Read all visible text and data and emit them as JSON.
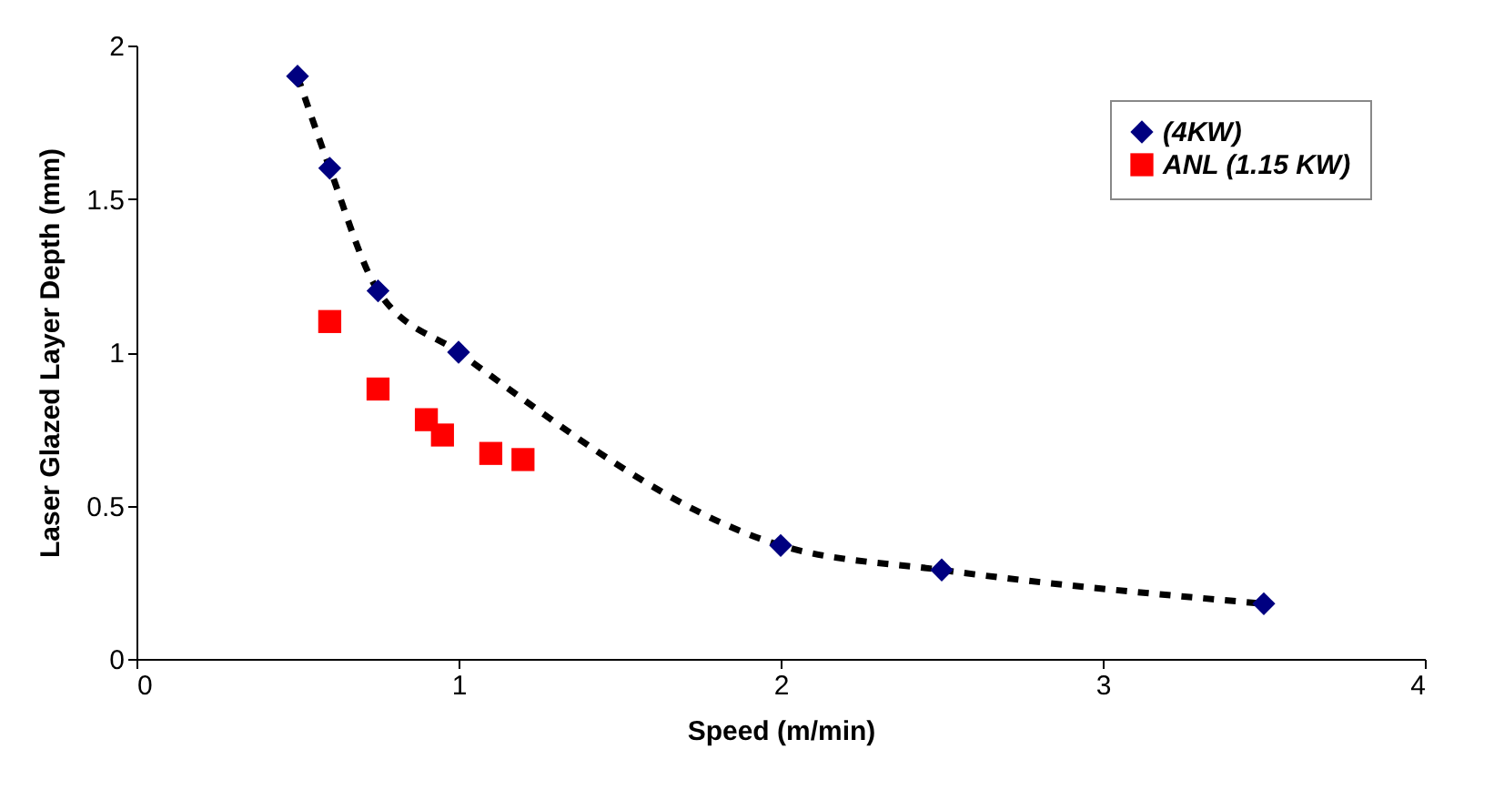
{
  "chart_data": {
    "type": "line",
    "xlabel": "Speed (m/min)",
    "ylabel": "Laser Glazed Layer Depth (mm)",
    "xlim": [
      0,
      4
    ],
    "xticks": [
      0,
      1,
      2,
      3,
      4
    ],
    "ylim": [
      0,
      2
    ],
    "yticks": [
      0,
      0.5,
      1,
      1.5,
      2
    ],
    "grid": false,
    "legend": "top right",
    "line_style": "dashed",
    "series": [
      {
        "name": "(4KW)",
        "marker": "diamond",
        "color": "#000080",
        "x": [
          0.5,
          0.6,
          0.75,
          1,
          2,
          2.5,
          3.5
        ],
        "values": [
          1.9,
          1.6,
          1.2,
          1.0,
          0.37,
          0.29,
          0.18
        ]
      },
      {
        "name": "ANL (1.15 KW)",
        "type": "scatter",
        "marker": "square",
        "color": "#ff0000",
        "x": [
          0.6,
          0.75,
          0.9,
          0.95,
          1.1,
          1.2
        ],
        "values": [
          1.1,
          0.88,
          0.78,
          0.73,
          0.67,
          0.65
        ]
      }
    ]
  }
}
